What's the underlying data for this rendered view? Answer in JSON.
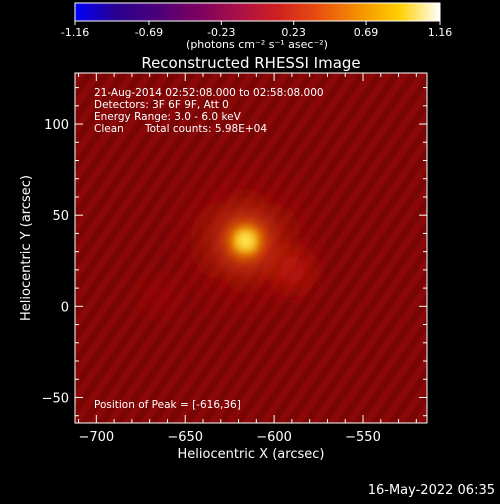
{
  "colorbar": {
    "ticks": [
      "-1.16",
      "-0.69",
      "-0.23",
      "0.23",
      "0.69",
      "1.16"
    ],
    "tick_values": [
      -1.16,
      -0.69,
      -0.23,
      0.23,
      0.69,
      1.16
    ],
    "range": [
      -1.16,
      1.16
    ],
    "unit_label": "(photons cm⁻² s⁻¹ asec⁻²)",
    "colormap": [
      "#0000ff",
      "#2a0090",
      "#4a007a",
      "#7a0060",
      "#a8104a",
      "#d02020",
      "#e85010",
      "#f59000",
      "#ffd000",
      "#ffffff"
    ]
  },
  "chart_data": {
    "type": "heatmap",
    "title": "Reconstructed RHESSI Image",
    "xlabel": "Heliocentric X (arcsec)",
    "ylabel": "Heliocentric Y (arcsec)",
    "xlim": [
      -712,
      -514
    ],
    "ylim": [
      -64,
      128
    ],
    "x_ticks": [
      "−700",
      "−650",
      "−600",
      "−550"
    ],
    "x_tick_values": [
      -700,
      -650,
      -600,
      -550
    ],
    "y_ticks": [
      "−50",
      "0",
      "50",
      "100"
    ],
    "y_tick_values": [
      -50,
      0,
      50,
      100
    ],
    "peak": {
      "x": -616,
      "y": 36,
      "value": 1.16
    },
    "sources": [
      {
        "x": -616,
        "y": 36,
        "value": 1.16
      },
      {
        "x": -590,
        "y": 20,
        "value": 0.45
      },
      {
        "x": -665,
        "y": 5,
        "value": 0.25
      }
    ],
    "annotations": [
      "21-Aug-2014 02:52:08.000 to 02:58:08.000",
      "Detectors: 3F 6F 9F, Att 0",
      "Energy Range: 3.0 - 6.0 keV",
      "Clean",
      "Total counts: 5.98E+04"
    ],
    "peak_label": "Position of Peak = [-616,36]",
    "background_color": "#8a0808"
  },
  "footer": {
    "timestamp": "16-May-2022 06:35"
  }
}
